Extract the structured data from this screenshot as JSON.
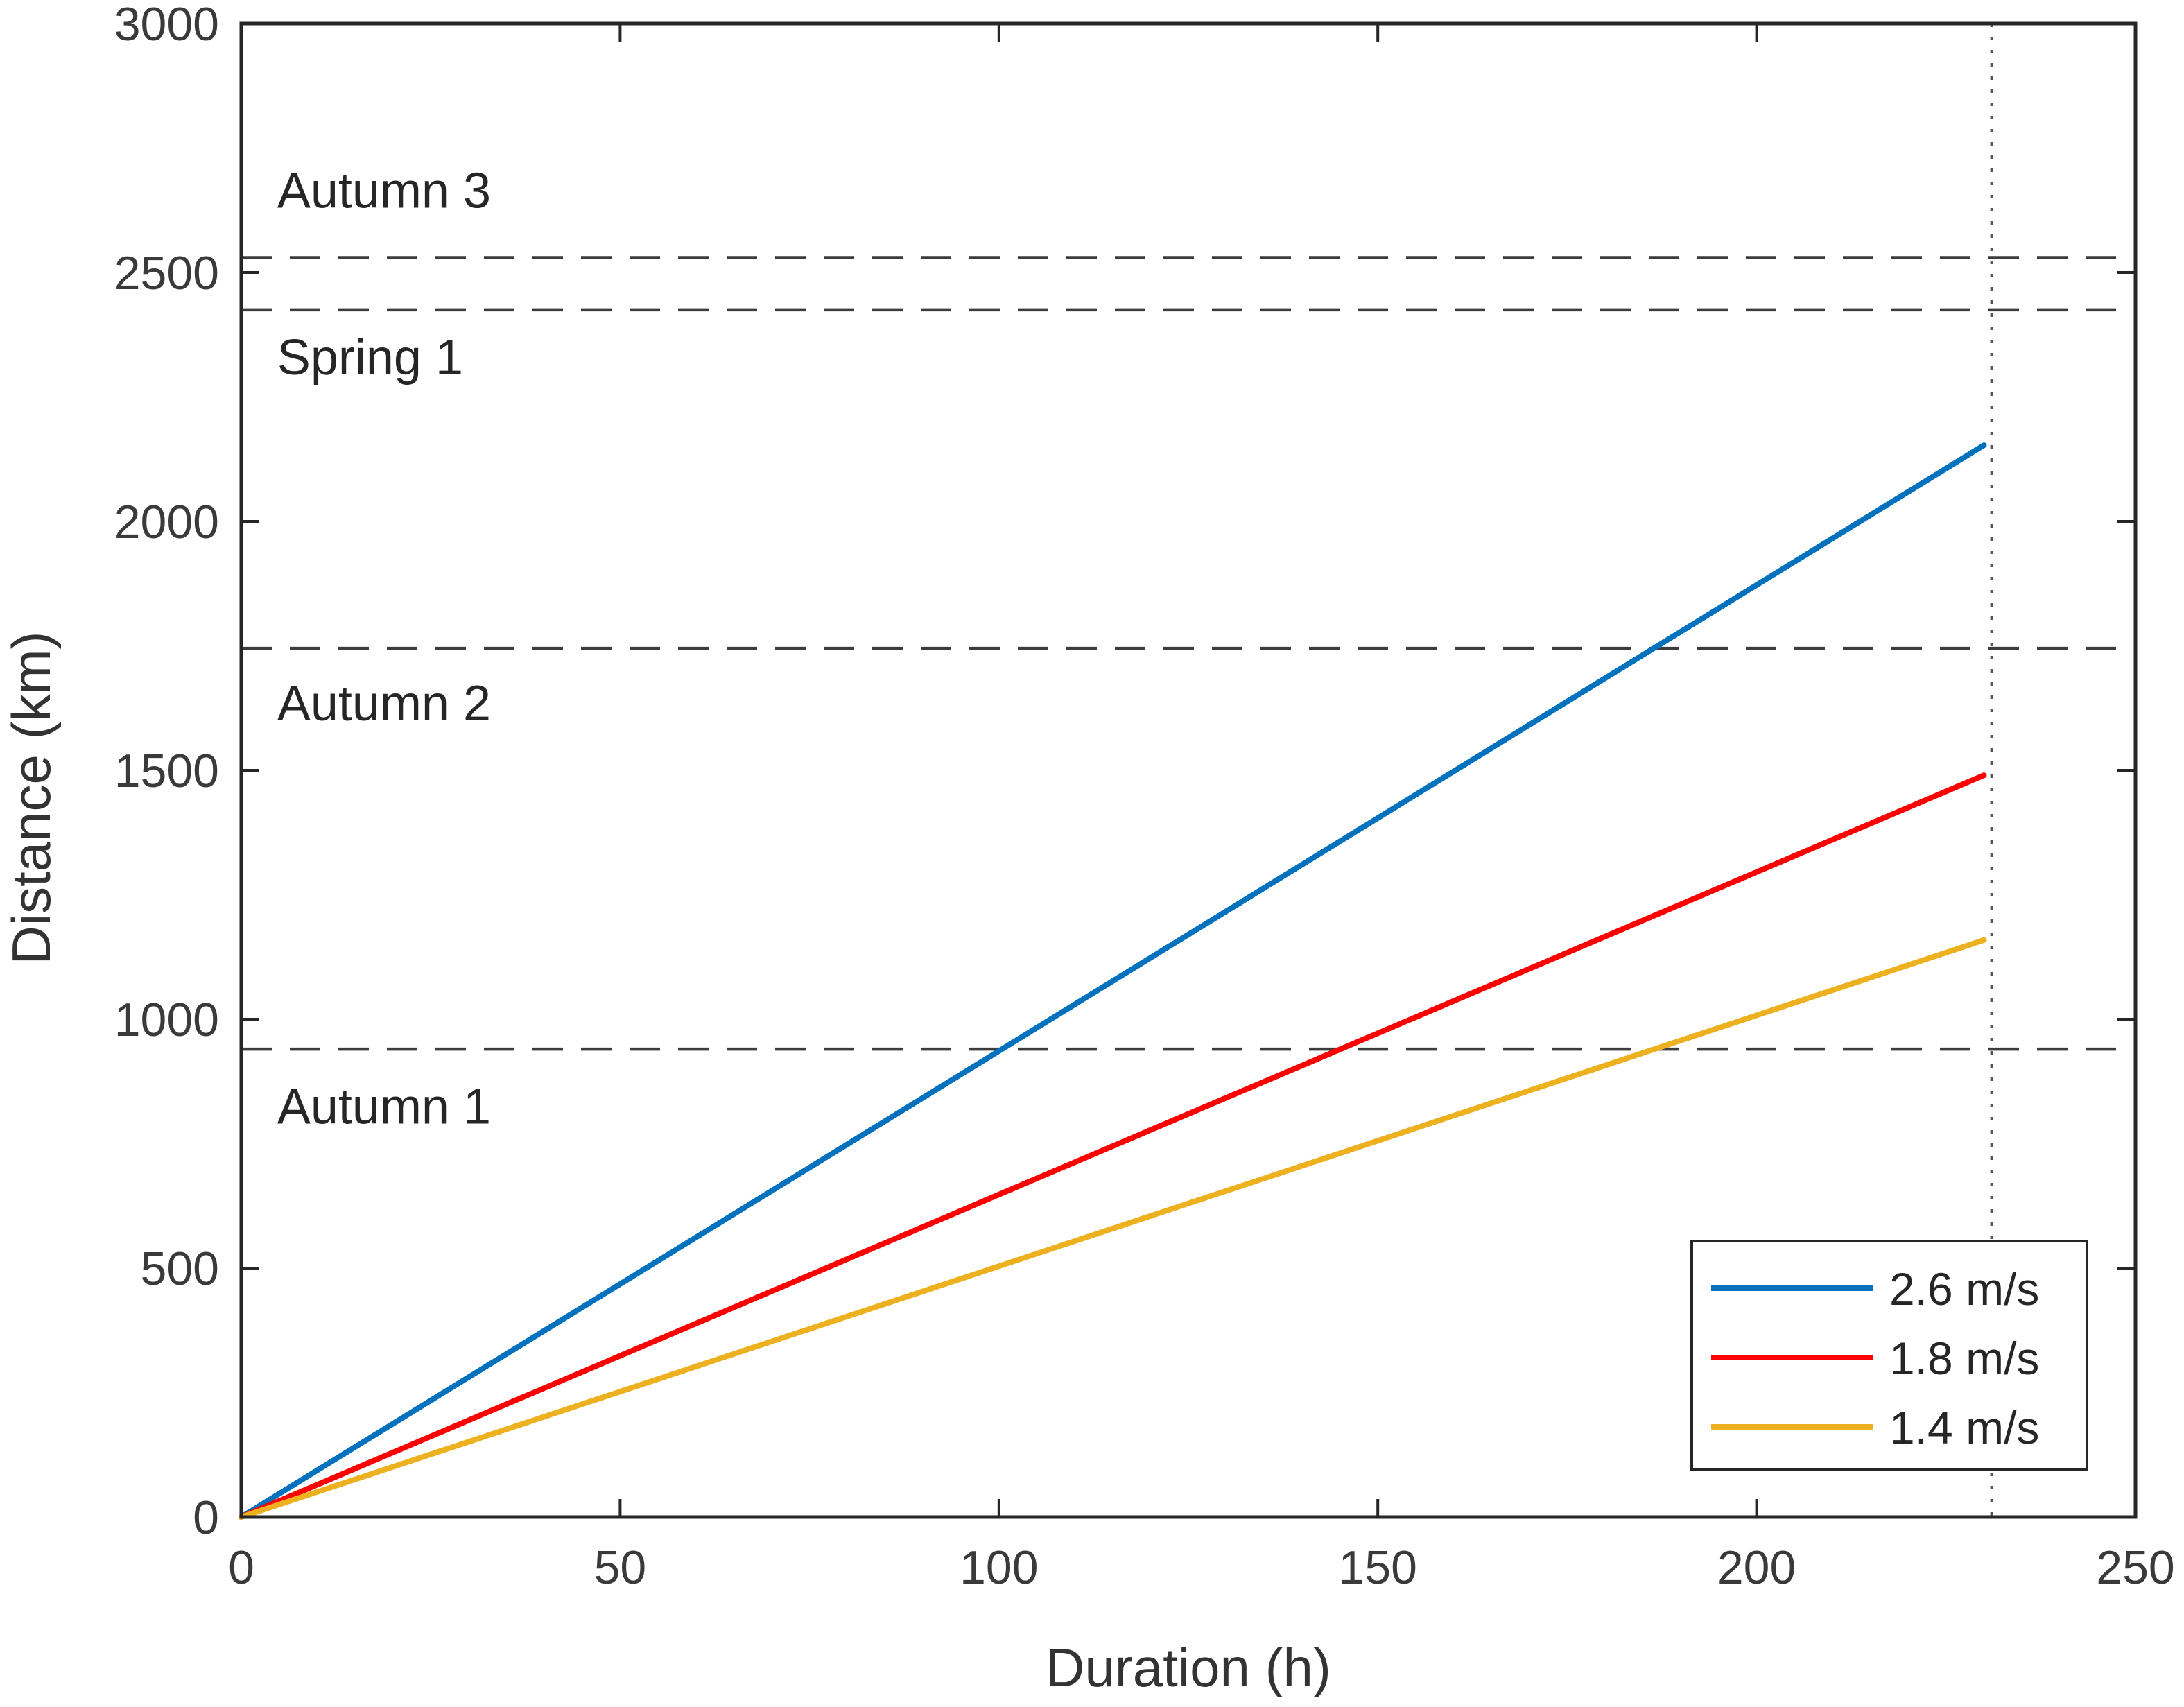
{
  "chart_data": {
    "type": "line",
    "title": "",
    "xlabel": "Duration (h)",
    "ylabel": "Distance (km)",
    "xlim": [
      0,
      250
    ],
    "ylim": [
      0,
      3000
    ],
    "xticks": [
      "0",
      "50",
      "100",
      "150",
      "200",
      "250"
    ],
    "yticks": [
      "0",
      "500",
      "1000",
      "1500",
      "2000",
      "2500",
      "3000"
    ],
    "grid": false,
    "legend_position": "bottom-right",
    "series": [
      {
        "name": "2.6 m/s",
        "color": "#0072BD",
        "x": [
          0,
          230
        ],
        "y": [
          0,
          2153
        ]
      },
      {
        "name": "1.8 m/s",
        "color": "#FF0000",
        "x": [
          0,
          230
        ],
        "y": [
          0,
          1490
        ]
      },
      {
        "name": "1.4 m/s",
        "color": "#EDB120",
        "x": [
          0,
          230
        ],
        "y": [
          0,
          1159
        ]
      }
    ],
    "reference_lines": [
      {
        "orientation": "horizontal",
        "y": 940,
        "style": "dashed"
      },
      {
        "orientation": "horizontal",
        "y": 1745,
        "style": "dashed"
      },
      {
        "orientation": "horizontal",
        "y": 2425,
        "style": "dashed"
      },
      {
        "orientation": "horizontal",
        "y": 2530,
        "style": "dashed"
      },
      {
        "orientation": "vertical",
        "x": 231,
        "style": "dotted"
      }
    ],
    "annotations": [
      {
        "text": "Autumn 1",
        "x": 2,
        "y": 825
      },
      {
        "text": "Autumn 2",
        "x": 2,
        "y": 1635
      },
      {
        "text": "Spring 1",
        "x": 2,
        "y": 2330
      },
      {
        "text": "Autumn 3",
        "x": 2,
        "y": 2665
      }
    ]
  }
}
